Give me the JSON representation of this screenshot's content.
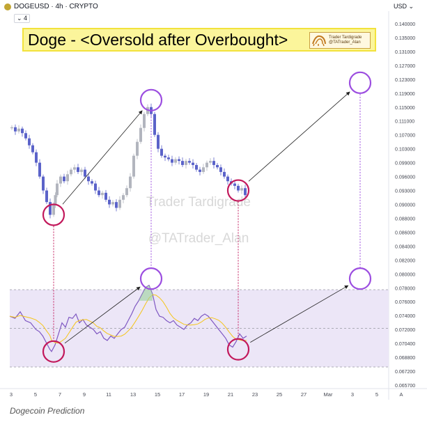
{
  "header": {
    "symbol": "DOGEUSD · 4h · CRYPTO",
    "interval_box": "4",
    "currency": "USD"
  },
  "banner": {
    "title": "Doge - <Oversold after Overbought>",
    "badge_line1": "Trader Tardigrade",
    "badge_line2": "@TATrader_Alan"
  },
  "watermark": {
    "line1": "Trader Tardigrade",
    "line2": "@TATrader_Alan"
  },
  "caption": "Dogecoin Prediction",
  "colors": {
    "bull": "#b2b5be",
    "bear": "#5b63c9",
    "rsi": "#7e57c2",
    "signal": "#f5c518",
    "circle_red": "#c2185b",
    "circle_purple": "#9c4ee0",
    "band": "#ece6f7"
  },
  "chart_data": {
    "type": "candlestick",
    "y_ticks": [
      "0.140000",
      "0.135000",
      "0.131000",
      "0.127000",
      "0.123000",
      "0.119000",
      "0.115000",
      "0.111000",
      "0.107000",
      "0.103000",
      "0.099000",
      "0.096000",
      "0.093000",
      "0.090000",
      "0.088000",
      "0.086000",
      "0.084000",
      "0.082000",
      "0.080000",
      "0.078000",
      "0.076000",
      "0.074000",
      "0.072000",
      "0.070400",
      "0.068800",
      "0.067200",
      "0.065700"
    ],
    "x_ticks": [
      "3",
      "5",
      "7",
      "9",
      "11",
      "13",
      "15",
      "17",
      "19",
      "21",
      "23",
      "25",
      "27",
      "Mar",
      "3",
      "5",
      "A"
    ],
    "price_path": [
      [
        0,
        0.109
      ],
      [
        2,
        0.1092
      ],
      [
        4,
        0.108
      ],
      [
        6,
        0.1088
      ],
      [
        8,
        0.1075
      ],
      [
        10,
        0.106
      ],
      [
        12,
        0.104
      ],
      [
        14,
        0.102
      ],
      [
        16,
        0.099
      ],
      [
        18,
        0.096
      ],
      [
        20,
        0.093
      ],
      [
        22,
        0.0905
      ],
      [
        24,
        0.0885
      ],
      [
        25,
        0.09
      ],
      [
        26,
        0.092
      ],
      [
        28,
        0.0945
      ],
      [
        30,
        0.096
      ],
      [
        32,
        0.095
      ],
      [
        34,
        0.0965
      ],
      [
        36,
        0.0975
      ],
      [
        38,
        0.098
      ],
      [
        40,
        0.097
      ],
      [
        42,
        0.0975
      ],
      [
        44,
        0.096
      ],
      [
        46,
        0.095
      ],
      [
        48,
        0.0945
      ],
      [
        50,
        0.093
      ],
      [
        52,
        0.092
      ],
      [
        54,
        0.0925
      ],
      [
        56,
        0.091
      ],
      [
        58,
        0.09
      ],
      [
        60,
        0.0905
      ],
      [
        62,
        0.0895
      ],
      [
        64,
        0.091
      ],
      [
        66,
        0.092
      ],
      [
        68,
        0.0935
      ],
      [
        70,
        0.096
      ],
      [
        72,
        0.101
      ],
      [
        74,
        0.105
      ],
      [
        76,
        0.109
      ],
      [
        78,
        0.113
      ],
      [
        80,
        0.115
      ],
      [
        82,
        0.113
      ],
      [
        84,
        0.107
      ],
      [
        86,
        0.103
      ],
      [
        88,
        0.101
      ],
      [
        90,
        0.1005
      ],
      [
        92,
        0.1
      ],
      [
        94,
        0.099
      ],
      [
        96,
        0.1
      ],
      [
        98,
        0.0995
      ],
      [
        100,
        0.0985
      ],
      [
        102,
        0.0995
      ],
      [
        104,
        0.099
      ],
      [
        106,
        0.0985
      ],
      [
        108,
        0.0975
      ],
      [
        110,
        0.097
      ],
      [
        112,
        0.098
      ],
      [
        114,
        0.099
      ],
      [
        116,
        0.0995
      ],
      [
        118,
        0.0985
      ],
      [
        120,
        0.098
      ],
      [
        122,
        0.097
      ],
      [
        124,
        0.096
      ],
      [
        126,
        0.095
      ],
      [
        128,
        0.0945
      ],
      [
        130,
        0.094
      ],
      [
        132,
        0.093
      ],
      [
        134,
        0.0935
      ],
      [
        136,
        0.092
      ]
    ],
    "rsi_path": [
      [
        0,
        56
      ],
      [
        3,
        54
      ],
      [
        6,
        60
      ],
      [
        9,
        52
      ],
      [
        12,
        50
      ],
      [
        15,
        44
      ],
      [
        17,
        42
      ],
      [
        19,
        38
      ],
      [
        21,
        32
      ],
      [
        23,
        26
      ],
      [
        24,
        24
      ],
      [
        26,
        30
      ],
      [
        28,
        40
      ],
      [
        30,
        50
      ],
      [
        32,
        46
      ],
      [
        34,
        55
      ],
      [
        36,
        54
      ],
      [
        38,
        58
      ],
      [
        40,
        50
      ],
      [
        42,
        53
      ],
      [
        44,
        48
      ],
      [
        46,
        46
      ],
      [
        48,
        44
      ],
      [
        50,
        40
      ],
      [
        52,
        42
      ],
      [
        54,
        36
      ],
      [
        56,
        34
      ],
      [
        58,
        38
      ],
      [
        60,
        36
      ],
      [
        62,
        40
      ],
      [
        64,
        44
      ],
      [
        66,
        46
      ],
      [
        68,
        52
      ],
      [
        70,
        58
      ],
      [
        72,
        65
      ],
      [
        74,
        70
      ],
      [
        76,
        76
      ],
      [
        78,
        82
      ],
      [
        80,
        84
      ],
      [
        82,
        76
      ],
      [
        84,
        62
      ],
      [
        86,
        56
      ],
      [
        88,
        55
      ],
      [
        90,
        52
      ],
      [
        92,
        50
      ],
      [
        94,
        52
      ],
      [
        96,
        48
      ],
      [
        98,
        46
      ],
      [
        100,
        44
      ],
      [
        102,
        48
      ],
      [
        104,
        50
      ],
      [
        106,
        54
      ],
      [
        108,
        52
      ],
      [
        110,
        56
      ],
      [
        112,
        58
      ],
      [
        114,
        56
      ],
      [
        116,
        52
      ],
      [
        118,
        48
      ],
      [
        120,
        44
      ],
      [
        122,
        40
      ],
      [
        124,
        36
      ],
      [
        126,
        30
      ],
      [
        128,
        28
      ],
      [
        130,
        33
      ],
      [
        132,
        40
      ],
      [
        134,
        36
      ],
      [
        136,
        38
      ]
    ],
    "rsi_levels": {
      "upper": 70,
      "middle": 50,
      "lower": 30
    },
    "annotations": [
      {
        "kind": "circle",
        "color": "red",
        "bar": 24,
        "price": 0.0885
      },
      {
        "kind": "circle",
        "color": "purple",
        "bar": 80,
        "price": 0.117
      },
      {
        "kind": "circle",
        "color": "red",
        "bar": 130,
        "price": 0.093
      },
      {
        "kind": "circle",
        "color": "purple",
        "bar": 200,
        "price": 0.122
      },
      {
        "kind": "circle",
        "color": "red",
        "bar": 24,
        "rsi": 24
      },
      {
        "kind": "circle",
        "color": "purple",
        "bar": 80,
        "rsi": 90
      },
      {
        "kind": "circle",
        "color": "red",
        "bar": 130,
        "rsi": 26
      },
      {
        "kind": "circle",
        "color": "purple",
        "bar": 200,
        "rsi": 90
      }
    ]
  }
}
